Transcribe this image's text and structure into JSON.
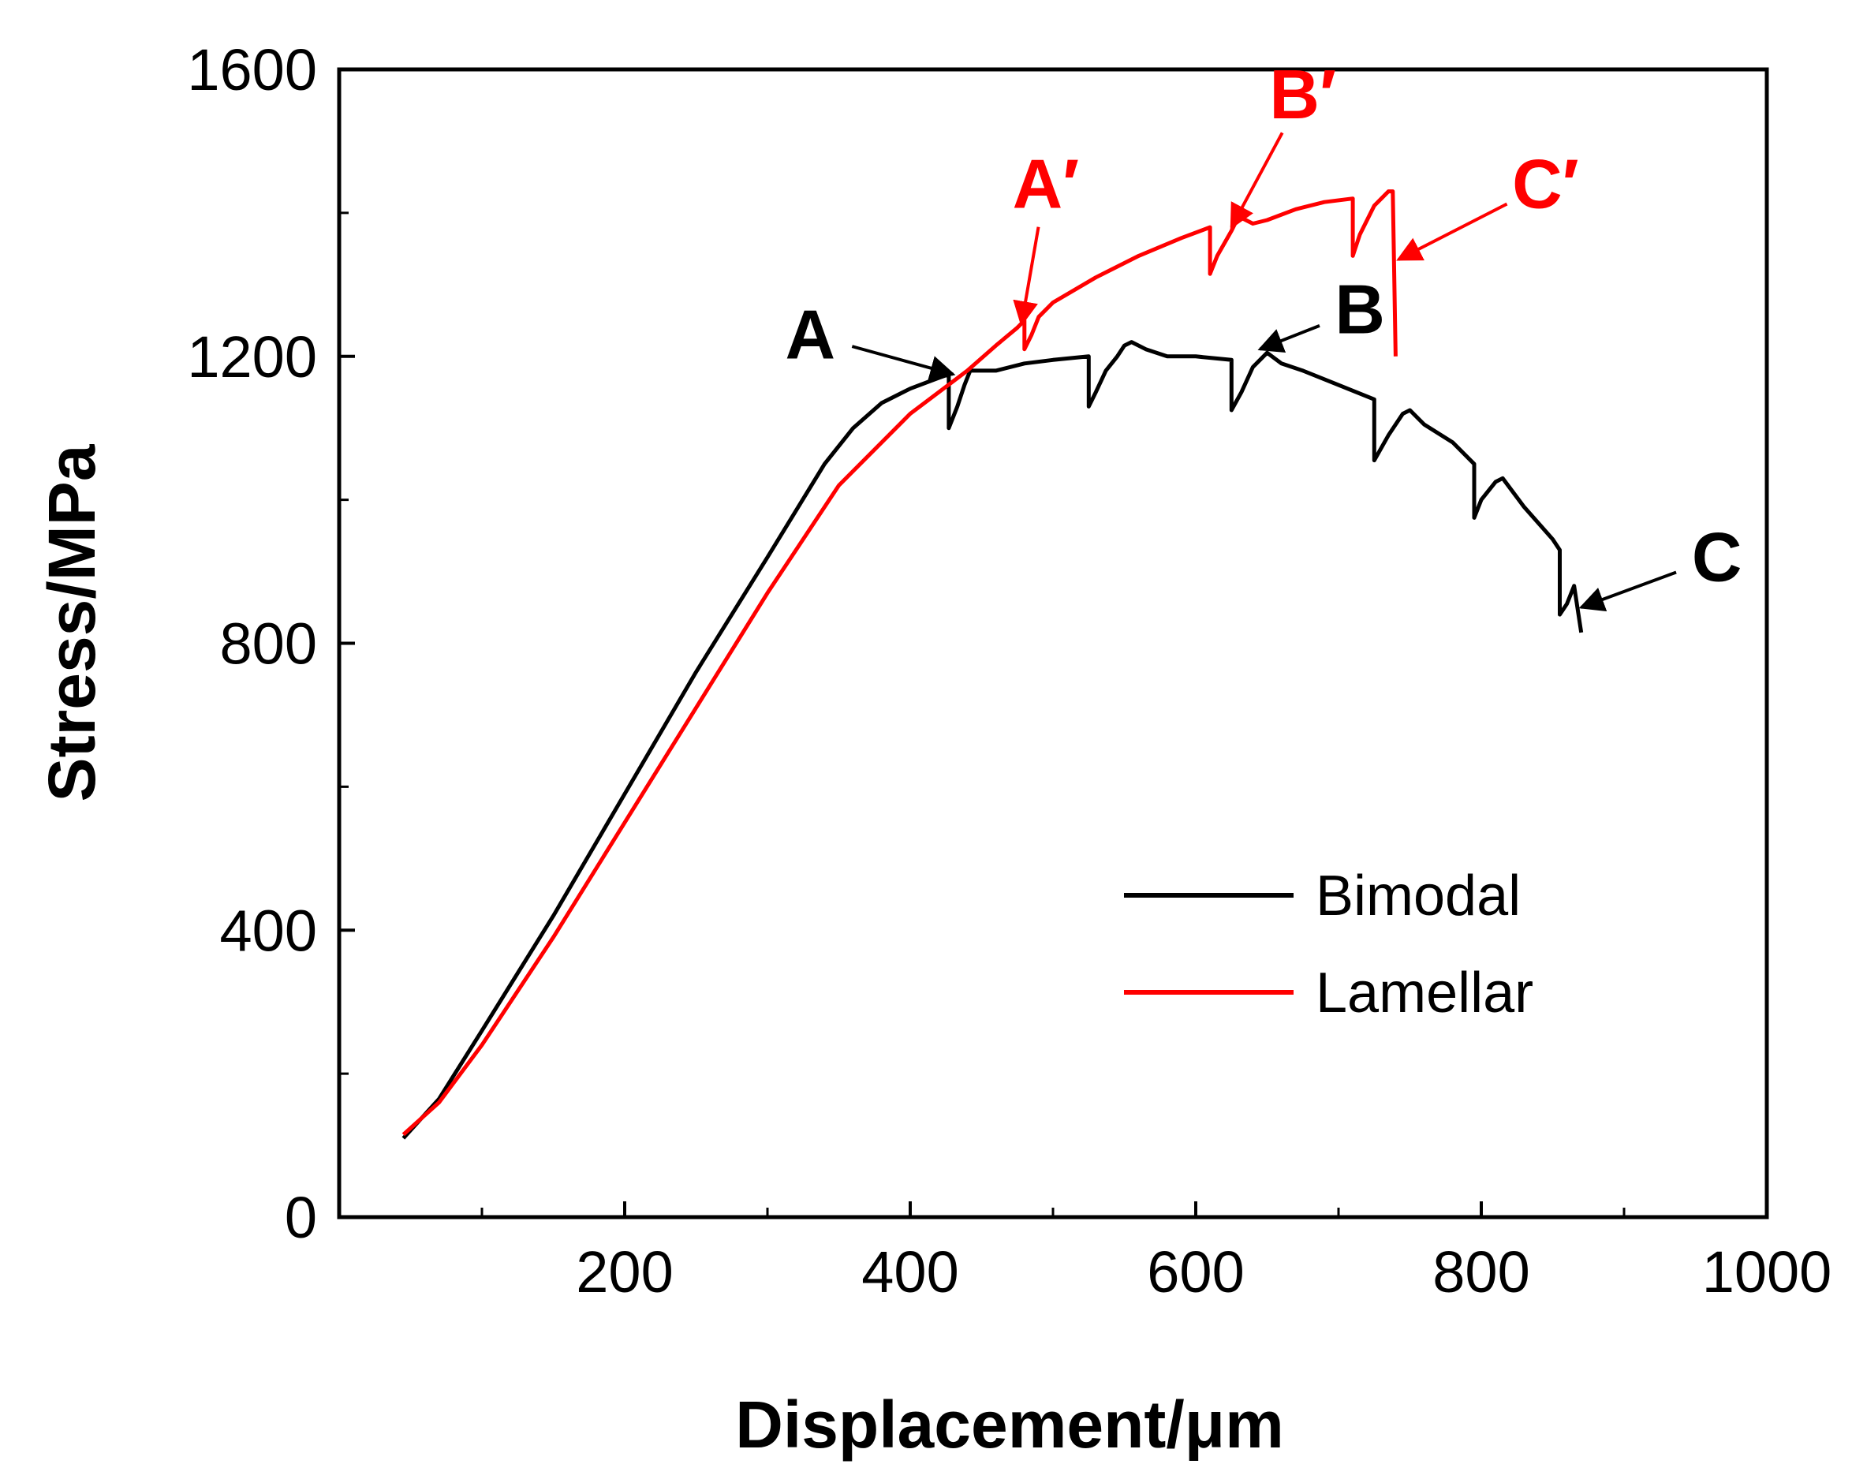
{
  "chart_data": {
    "type": "line",
    "title": "",
    "xlabel": "Displacement/μm",
    "ylabel": "Stress/MPa",
    "xlim": [
      0,
      1000
    ],
    "ylim": [
      0,
      1600
    ],
    "xticks": [
      200,
      400,
      600,
      800,
      1000
    ],
    "yticks": [
      0,
      400,
      800,
      1200,
      1600
    ],
    "xtick_labels": [
      "200",
      "400",
      "600",
      "800",
      "1000"
    ],
    "ytick_labels": [
      "0",
      "400",
      "800",
      "1200",
      "1600"
    ],
    "x_minor_ticks": [
      100,
      300,
      500,
      700,
      900
    ],
    "y_minor_ticks": [
      200,
      600,
      1000,
      1400
    ],
    "grid": false,
    "legend_position": "lower-right",
    "series": [
      {
        "name": "Bimodal",
        "color": "#000000",
        "points": [
          [
            45,
            110
          ],
          [
            70,
            165
          ],
          [
            100,
            260
          ],
          [
            150,
            420
          ],
          [
            200,
            590
          ],
          [
            250,
            760
          ],
          [
            300,
            920
          ],
          [
            340,
            1050
          ],
          [
            360,
            1100
          ],
          [
            380,
            1135
          ],
          [
            400,
            1155
          ],
          [
            420,
            1170
          ],
          [
            427,
            1175
          ],
          [
            427,
            1100
          ],
          [
            433,
            1130
          ],
          [
            438,
            1160
          ],
          [
            442,
            1180
          ],
          [
            460,
            1180
          ],
          [
            480,
            1190
          ],
          [
            500,
            1195
          ],
          [
            525,
            1200
          ],
          [
            525,
            1130
          ],
          [
            530,
            1150
          ],
          [
            537,
            1180
          ],
          [
            545,
            1200
          ],
          [
            550,
            1215
          ],
          [
            555,
            1220
          ],
          [
            565,
            1210
          ],
          [
            580,
            1200
          ],
          [
            600,
            1200
          ],
          [
            625,
            1195
          ],
          [
            625,
            1125
          ],
          [
            632,
            1150
          ],
          [
            640,
            1185
          ],
          [
            650,
            1205
          ],
          [
            660,
            1190
          ],
          [
            675,
            1180
          ],
          [
            700,
            1160
          ],
          [
            725,
            1140
          ],
          [
            725,
            1055
          ],
          [
            735,
            1090
          ],
          [
            745,
            1120
          ],
          [
            750,
            1125
          ],
          [
            760,
            1105
          ],
          [
            780,
            1080
          ],
          [
            795,
            1050
          ],
          [
            795,
            975
          ],
          [
            800,
            1000
          ],
          [
            810,
            1025
          ],
          [
            815,
            1030
          ],
          [
            830,
            990
          ],
          [
            850,
            945
          ],
          [
            855,
            930
          ],
          [
            855,
            840
          ],
          [
            860,
            855
          ],
          [
            865,
            880
          ],
          [
            870,
            815
          ]
        ]
      },
      {
        "name": "Lamellar",
        "color": "#ff0000",
        "points": [
          [
            45,
            115
          ],
          [
            70,
            160
          ],
          [
            100,
            240
          ],
          [
            150,
            390
          ],
          [
            200,
            550
          ],
          [
            250,
            710
          ],
          [
            300,
            870
          ],
          [
            350,
            1020
          ],
          [
            400,
            1120
          ],
          [
            440,
            1180
          ],
          [
            460,
            1215
          ],
          [
            475,
            1240
          ],
          [
            480,
            1250
          ],
          [
            480,
            1210
          ],
          [
            485,
            1230
          ],
          [
            490,
            1255
          ],
          [
            500,
            1275
          ],
          [
            530,
            1310
          ],
          [
            560,
            1340
          ],
          [
            590,
            1365
          ],
          [
            610,
            1380
          ],
          [
            610,
            1315
          ],
          [
            615,
            1340
          ],
          [
            625,
            1375
          ],
          [
            630,
            1395
          ],
          [
            640,
            1385
          ],
          [
            650,
            1390
          ],
          [
            670,
            1405
          ],
          [
            690,
            1415
          ],
          [
            710,
            1420
          ],
          [
            710,
            1340
          ],
          [
            715,
            1370
          ],
          [
            725,
            1410
          ],
          [
            735,
            1430
          ],
          [
            738,
            1430
          ],
          [
            740,
            1200
          ]
        ]
      }
    ],
    "annotations": [
      {
        "label": "A",
        "color": "#000000",
        "arrow_tip": [
          430,
          1175
        ],
        "text_at": [
          330,
          1230
        ]
      },
      {
        "label": "B",
        "color": "#000000",
        "arrow_tip": [
          645,
          1210
        ],
        "text_at": [
          715,
          1265
        ]
      },
      {
        "label": "C",
        "color": "#000000",
        "arrow_tip": [
          870,
          850
        ],
        "text_at": [
          965,
          920
        ]
      },
      {
        "label": "A′",
        "color": "#ff0000",
        "arrow_tip": [
          478,
          1245
        ],
        "text_at": [
          495,
          1440
        ]
      },
      {
        "label": "B′",
        "color": "#ff0000",
        "arrow_tip": [
          625,
          1380
        ],
        "text_at": [
          675,
          1565
        ]
      },
      {
        "label": "C′",
        "color": "#ff0000",
        "arrow_tip": [
          742,
          1335
        ],
        "text_at": [
          845,
          1440
        ]
      }
    ]
  }
}
